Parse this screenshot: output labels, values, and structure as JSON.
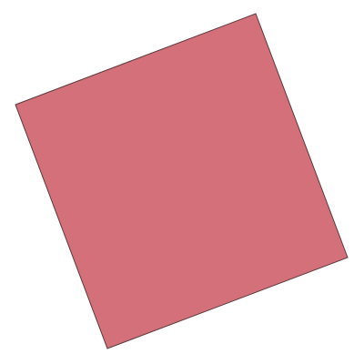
{
  "shape": {
    "kind": "rotated-square",
    "fill": "#d37079",
    "stroke": "#5a3a3d"
  },
  "background": "#ffffff"
}
